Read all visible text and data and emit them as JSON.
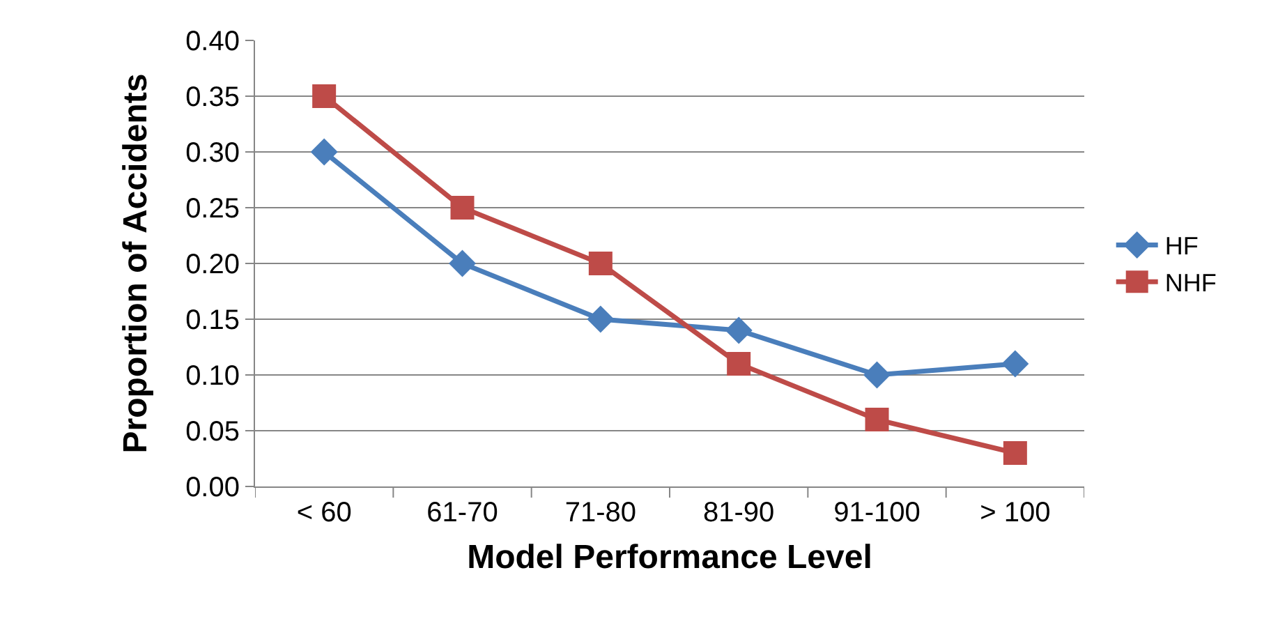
{
  "chart_data": {
    "type": "line",
    "xlabel": "Model Performance Level",
    "ylabel": "Proportion of Accidents",
    "categories": [
      "< 60",
      "61-70",
      "71-80",
      "81-90",
      "91-100",
      "> 100"
    ],
    "series": [
      {
        "name": "HF",
        "color": "#4a7ebb",
        "marker": "diamond",
        "values": [
          0.3,
          0.2,
          0.15,
          0.14,
          0.1,
          0.11
        ]
      },
      {
        "name": "NHF",
        "color": "#be4b48",
        "marker": "square",
        "values": [
          0.35,
          0.25,
          0.2,
          0.11,
          0.06,
          0.03
        ]
      }
    ],
    "ylim": [
      0,
      0.4
    ],
    "yticks": [
      {
        "value": 0,
        "label": "0.00"
      },
      {
        "value": 0.05,
        "label": "0.05"
      },
      {
        "value": 0.1,
        "label": "0.10"
      },
      {
        "value": 0.15,
        "label": "0.15"
      },
      {
        "value": 0.2,
        "label": "0.20"
      },
      {
        "value": 0.25,
        "label": "0.25"
      },
      {
        "value": 0.3,
        "label": "0.30"
      },
      {
        "value": 0.35,
        "label": "0.35"
      },
      {
        "value": 0.4,
        "label": "0.40"
      }
    ],
    "grid": "y",
    "legend": "right",
    "line_style": "solid"
  }
}
